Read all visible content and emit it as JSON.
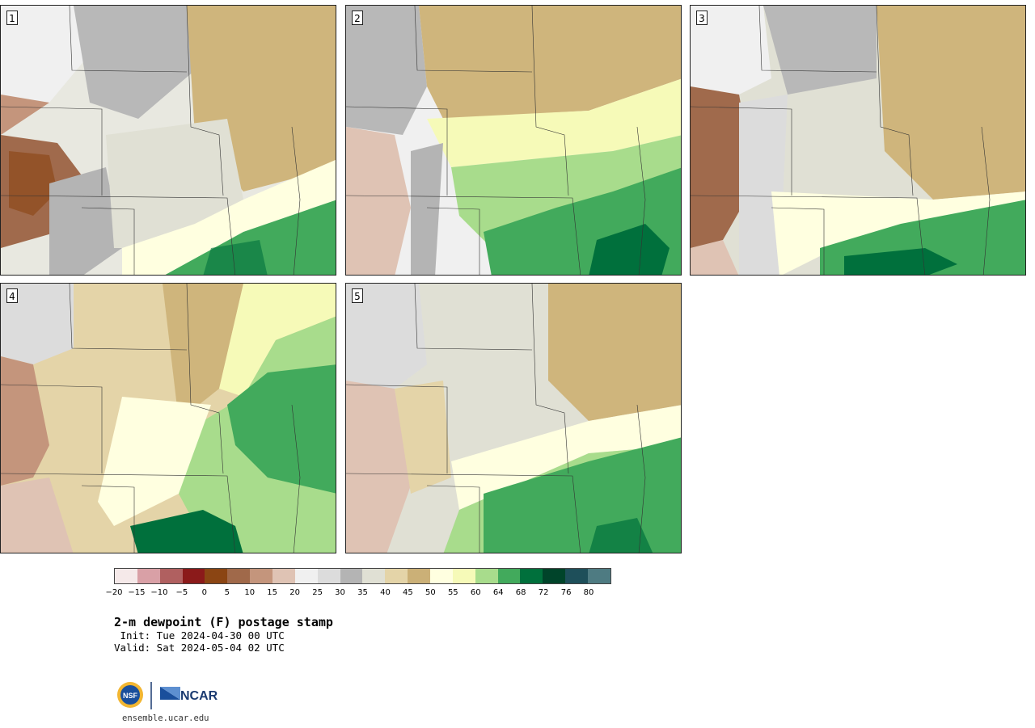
{
  "panels": [
    {
      "label": "1",
      "theme": "dry"
    },
    {
      "label": "2",
      "theme": "moist-central"
    },
    {
      "label": "3",
      "theme": "dry-south-moist"
    },
    {
      "label": "4",
      "theme": "moist-east"
    },
    {
      "label": "5",
      "theme": "moist-south"
    }
  ],
  "colorbar": {
    "colors": [
      "#f5e9e9",
      "#d9a0a6",
      "#b06060",
      "#8b1a1a",
      "#8b4513",
      "#a0694a",
      "#c4957c",
      "#dfc3b4",
      "#f0f0f0",
      "#dcdcdc",
      "#b4b4b4",
      "#e0e0d4",
      "#e4d4a8",
      "#cbb077",
      "#ffffe0",
      "#f6fab8",
      "#a8dc8c",
      "#42aa5c",
      "#00703c",
      "#00442a",
      "#1e4f5a",
      "#4e7b82"
    ],
    "ticks": [
      "−20",
      "−15",
      "−10",
      "−5",
      "0",
      "5",
      "10",
      "15",
      "20",
      "25",
      "30",
      "35",
      "40",
      "45",
      "50",
      "55",
      "60",
      "64",
      "68",
      "72",
      "76",
      "80"
    ]
  },
  "title": "2-m dewpoint (F) postage stamp",
  "init": " Init: Tue 2024-04-30 00 UTC",
  "valid": "Valid: Sat 2024-05-04 02 UTC",
  "logos": {
    "nsf": "NSF",
    "ncar": "NCAR"
  },
  "website": "ensemble.ucar.edu"
}
